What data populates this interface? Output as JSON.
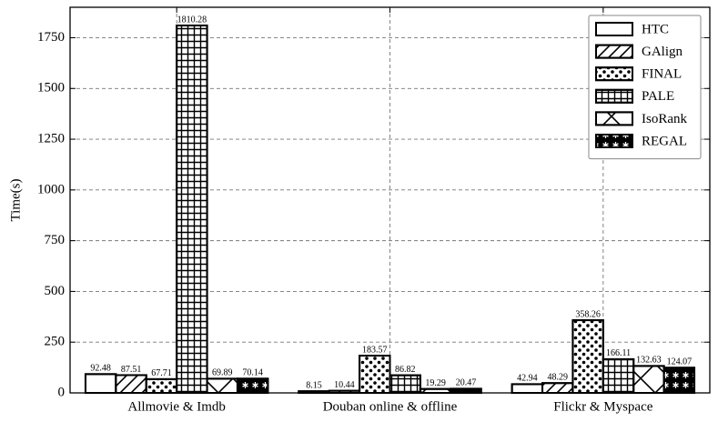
{
  "chart_data": {
    "type": "bar",
    "y_label": "Time(s)",
    "categories": [
      "Allmovie & Imdb",
      "Douban online & offline",
      "Flickr & Myspace"
    ],
    "series": [
      {
        "name": "HTC",
        "color": "#000000",
        "hatch": "",
        "values": [
          92.48,
          8.15,
          42.94
        ]
      },
      {
        "name": "GAlign",
        "color": "#000000",
        "hatch": "/",
        "values": [
          87.51,
          10.44,
          48.29
        ]
      },
      {
        "name": "FINAL",
        "color": "#000000",
        "hatch": ".",
        "values": [
          67.71,
          183.57,
          358.26
        ]
      },
      {
        "name": "PALE",
        "color": "#000000",
        "hatch": "+",
        "values": [
          1810.28,
          86.82,
          166.11
        ]
      },
      {
        "name": "IsoRank",
        "color": "#000000",
        "hatch": "x",
        "values": [
          69.89,
          19.29,
          132.63
        ]
      },
      {
        "name": "REGAL",
        "color": "#000000",
        "hatch": "*",
        "values": [
          70.14,
          20.47,
          124.07
        ]
      }
    ],
    "ylim": [
      0,
      1900
    ],
    "yticks": [
      0,
      250,
      500,
      750,
      1000,
      1250,
      1500,
      1750
    ],
    "grid": true,
    "legend": "upper right"
  }
}
